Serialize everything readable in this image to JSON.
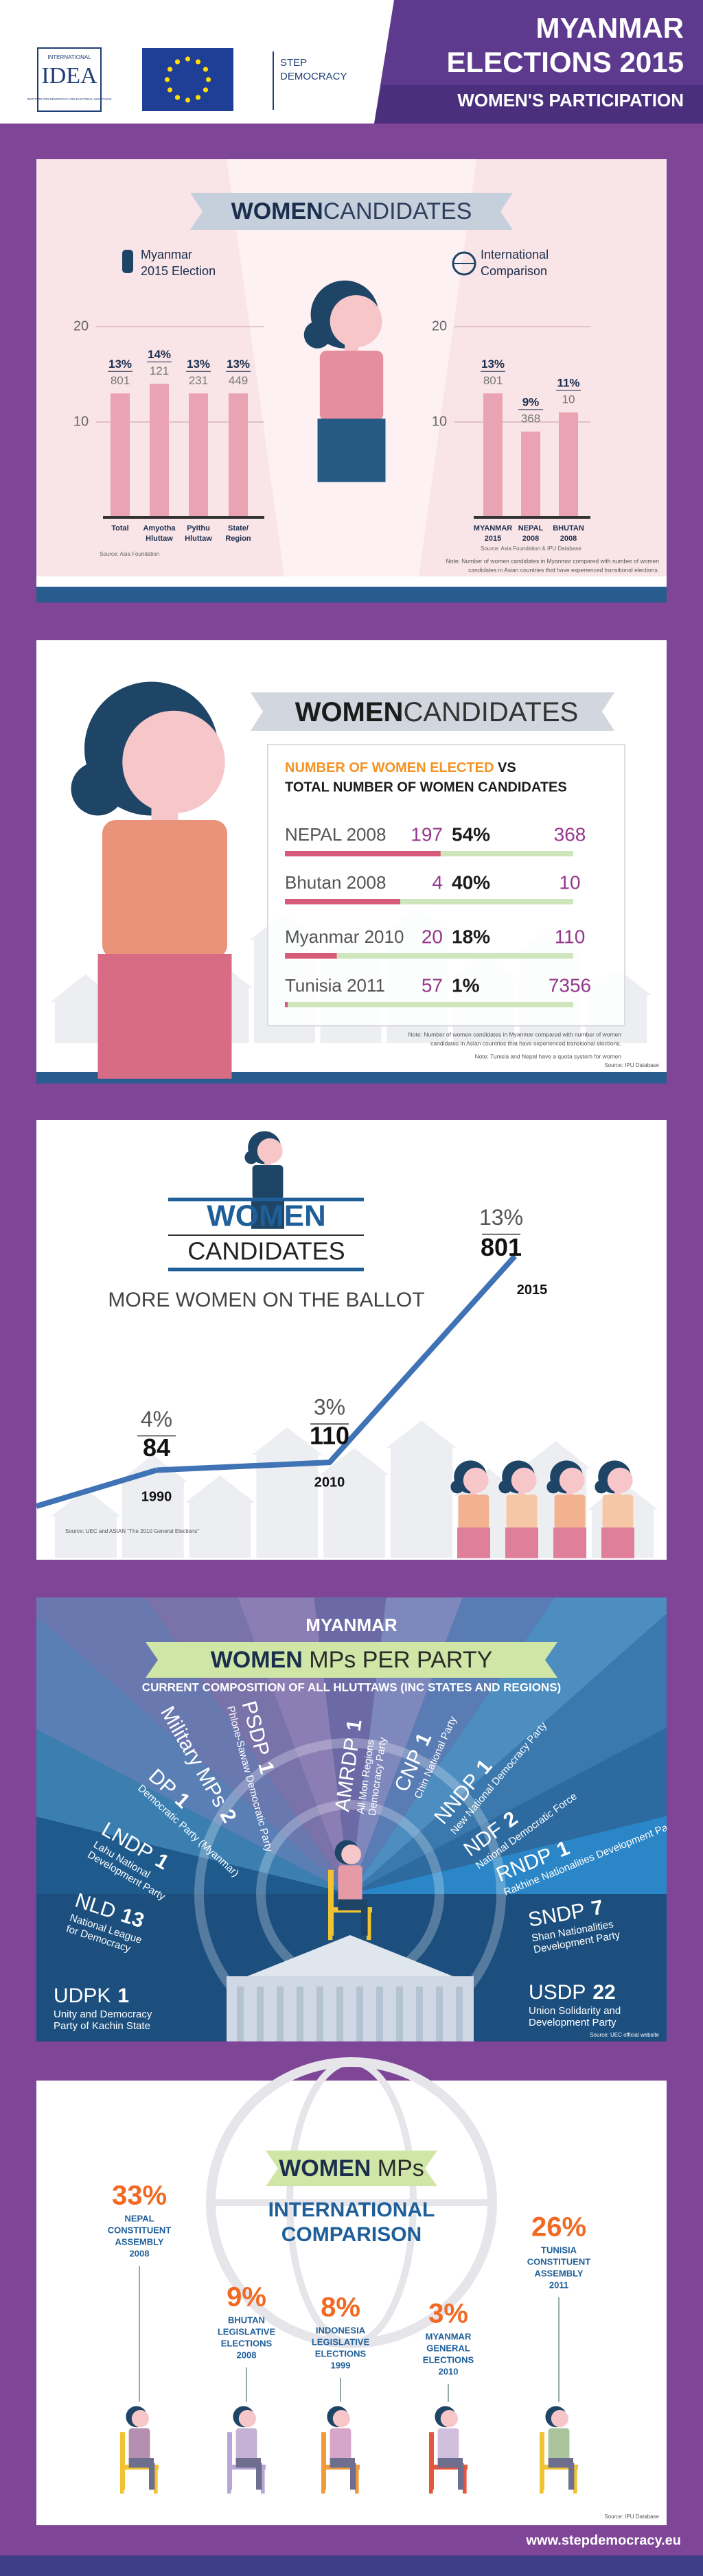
{
  "header": {
    "idea": {
      "top": "INTERNATIONAL",
      "name": "IDEA",
      "caption": "INSTITUTE FOR DEMOCRACY AND ELECTORAL ASSISTANCE"
    },
    "step": [
      "STEP",
      "DEMOCRACY"
    ],
    "title": [
      "MYANMAR",
      "ELECTIONS 2015"
    ],
    "subtitle": "WOMEN'S PARTICIPATION"
  },
  "panel1": {
    "title": {
      "bold": "WOMEN",
      "light": "CANDIDATES"
    },
    "left": {
      "label": [
        "Myanmar",
        "2015 Election"
      ],
      "ylim": [
        0,
        20
      ],
      "yticks": [
        10,
        20
      ],
      "categories": [
        [
          "Total"
        ],
        [
          "Amyotha",
          "Hluttaw"
        ],
        [
          "Pyithu",
          "Hluttaw"
        ],
        [
          "State/",
          "Region"
        ]
      ],
      "values": [
        {
          "value": 13,
          "label": "13%"
        },
        {
          "value": 14,
          "label": "14%"
        },
        {
          "value": 13,
          "label": "13%"
        },
        {
          "value": 13,
          "label": "13%"
        }
      ],
      "counts": [
        801,
        121,
        231,
        449
      ],
      "source": "Source: Asia Foundation"
    },
    "right": {
      "label": [
        "International",
        "Comparison"
      ],
      "ylim": [
        0,
        20
      ],
      "yticks": [
        10,
        20
      ],
      "categories": [
        [
          "MYANMAR",
          "2015"
        ],
        [
          "NEPAL",
          "2008"
        ],
        [
          "BHUTAN",
          "2008"
        ]
      ],
      "values": [
        {
          "value": 13,
          "label": "13%"
        },
        {
          "value": 9,
          "label": "9%"
        },
        {
          "value": 11,
          "label": "11%"
        }
      ],
      "counts": [
        801,
        368,
        10
      ],
      "source": "Source: Asia Foundation & IPU Database"
    },
    "note": [
      "Note: Number of women candidates in Myanmar compared with number of women",
      "candidates in Asian countries that have experienced transitional elections."
    ]
  },
  "panel2": {
    "title": {
      "bold": "WOMEN",
      "light": "CANDIDATES"
    },
    "heading": {
      "highlight": "NUMBER OF WOMEN ELECTED",
      "vs": " VS",
      "line2": "TOTAL NUMBER OF WOMEN CANDIDATES"
    },
    "rows": [
      {
        "name": "NEPAL 2008",
        "elected": 197,
        "share": {
          "value": 54,
          "label": "54%"
        },
        "total": 368
      },
      {
        "name": "Bhutan 2008",
        "elected": 4,
        "share": {
          "value": 40,
          "label": "40%"
        },
        "total": 10
      },
      {
        "name": "Myanmar 2010",
        "elected": 20,
        "share": {
          "value": 18,
          "label": "18%"
        },
        "total": 110
      },
      {
        "name": "Tunisia 2011",
        "elected": 57,
        "share": {
          "value": 1,
          "label": "1%"
        },
        "total": 7356
      }
    ],
    "notes": [
      "Note: Number of women candidates in Myanmar compared with number of women",
      "candidates in Asian countries that have experienced transitional elections.",
      "Note: Tunisia and Nepal have a quota system for women"
    ],
    "source": "Source: IPU Database"
  },
  "panel3": {
    "title": {
      "bold": "WOMEN",
      "light": "CANDIDATES"
    },
    "subtitle": "MORE WOMEN ON THE BALLOT",
    "points": [
      {
        "year": "1990",
        "share": {
          "value": 4,
          "label": "4%"
        },
        "count": 84
      },
      {
        "year": "2010",
        "share": {
          "value": 3,
          "label": "3%"
        },
        "count": 110
      },
      {
        "year": "2015",
        "share": {
          "value": 13,
          "label": "13%"
        },
        "count": 801
      }
    ],
    "source": "Source: UEC and ASIAN \"The 2010 General Elections\""
  },
  "panel4": {
    "heading": "MYANMAR",
    "title": {
      "bold": "WOMEN",
      "light": " MPs PER PARTY"
    },
    "subtitle": "CURRENT COMPOSITION OF ALL HLUTTAWS (INC STATES AND REGIONS)",
    "parties": [
      {
        "abbr": "UDPK",
        "mps": 1,
        "name": [
          "Unity and Democracy",
          "Party of Kachin State"
        ]
      },
      {
        "abbr": "NLD",
        "mps": 13,
        "name": [
          "National League",
          "for Democracy"
        ]
      },
      {
        "abbr": "LNDP",
        "mps": 1,
        "name": [
          "Lahu National",
          "Development Party"
        ]
      },
      {
        "abbr": "DP",
        "mps": 1,
        "name": [
          "Democratic Party (Myanmar)"
        ]
      },
      {
        "abbr": "Military MPs",
        "mps": 2,
        "name": []
      },
      {
        "abbr": "PSDP",
        "mps": 1,
        "name": [
          "Phlone-Sawaw Democratic Party"
        ]
      },
      {
        "abbr": "AMRDP",
        "mps": 1,
        "name": [
          "All Mon Regions",
          "Democracy Party"
        ]
      },
      {
        "abbr": "CNP",
        "mps": 1,
        "name": [
          "Chin National Party"
        ]
      },
      {
        "abbr": "NNDP",
        "mps": 1,
        "name": [
          "New National Democracy Party"
        ]
      },
      {
        "abbr": "NDF",
        "mps": 2,
        "name": [
          "National Democratic Force"
        ]
      },
      {
        "abbr": "RNDP",
        "mps": 1,
        "name": [
          "Rakhine Nationalities Development Party"
        ]
      },
      {
        "abbr": "SNDP",
        "mps": 7,
        "name": [
          "Shan Nationalities",
          "Development Party"
        ]
      },
      {
        "abbr": "USDP",
        "mps": 22,
        "name": [
          "Union Solidarity and",
          "Development Party"
        ]
      }
    ],
    "source": "Source: UEC official website"
  },
  "panel5": {
    "title": {
      "bold": "WOMEN",
      "light": " MPs"
    },
    "subtitle": [
      "INTERNATIONAL",
      "COMPARISON"
    ],
    "countries": [
      {
        "share": {
          "value": 33,
          "label": "33%"
        },
        "lines": [
          "NEPAL",
          "CONSTITUENT",
          "ASSEMBLY",
          "2008"
        ]
      },
      {
        "share": {
          "value": 9,
          "label": "9%"
        },
        "lines": [
          "BHUTAN",
          "LEGISLATIVE",
          "ELECTIONS",
          "2008"
        ]
      },
      {
        "share": {
          "value": 8,
          "label": "8%"
        },
        "lines": [
          "INDONESIA",
          "LEGISLATIVE",
          "ELECTIONS",
          "1999"
        ]
      },
      {
        "share": {
          "value": 3,
          "label": "3%"
        },
        "lines": [
          "MYANMAR",
          "GENERAL",
          "ELECTIONS",
          "2010"
        ]
      },
      {
        "share": {
          "value": 26,
          "label": "26%"
        },
        "lines": [
          "TUNISIA",
          "CONSTITUENT",
          "ASSEMBLY",
          "2011"
        ]
      }
    ],
    "source": "Source: IPU Database"
  },
  "footer": {
    "url": "www.stepdemocracy.eu"
  }
}
